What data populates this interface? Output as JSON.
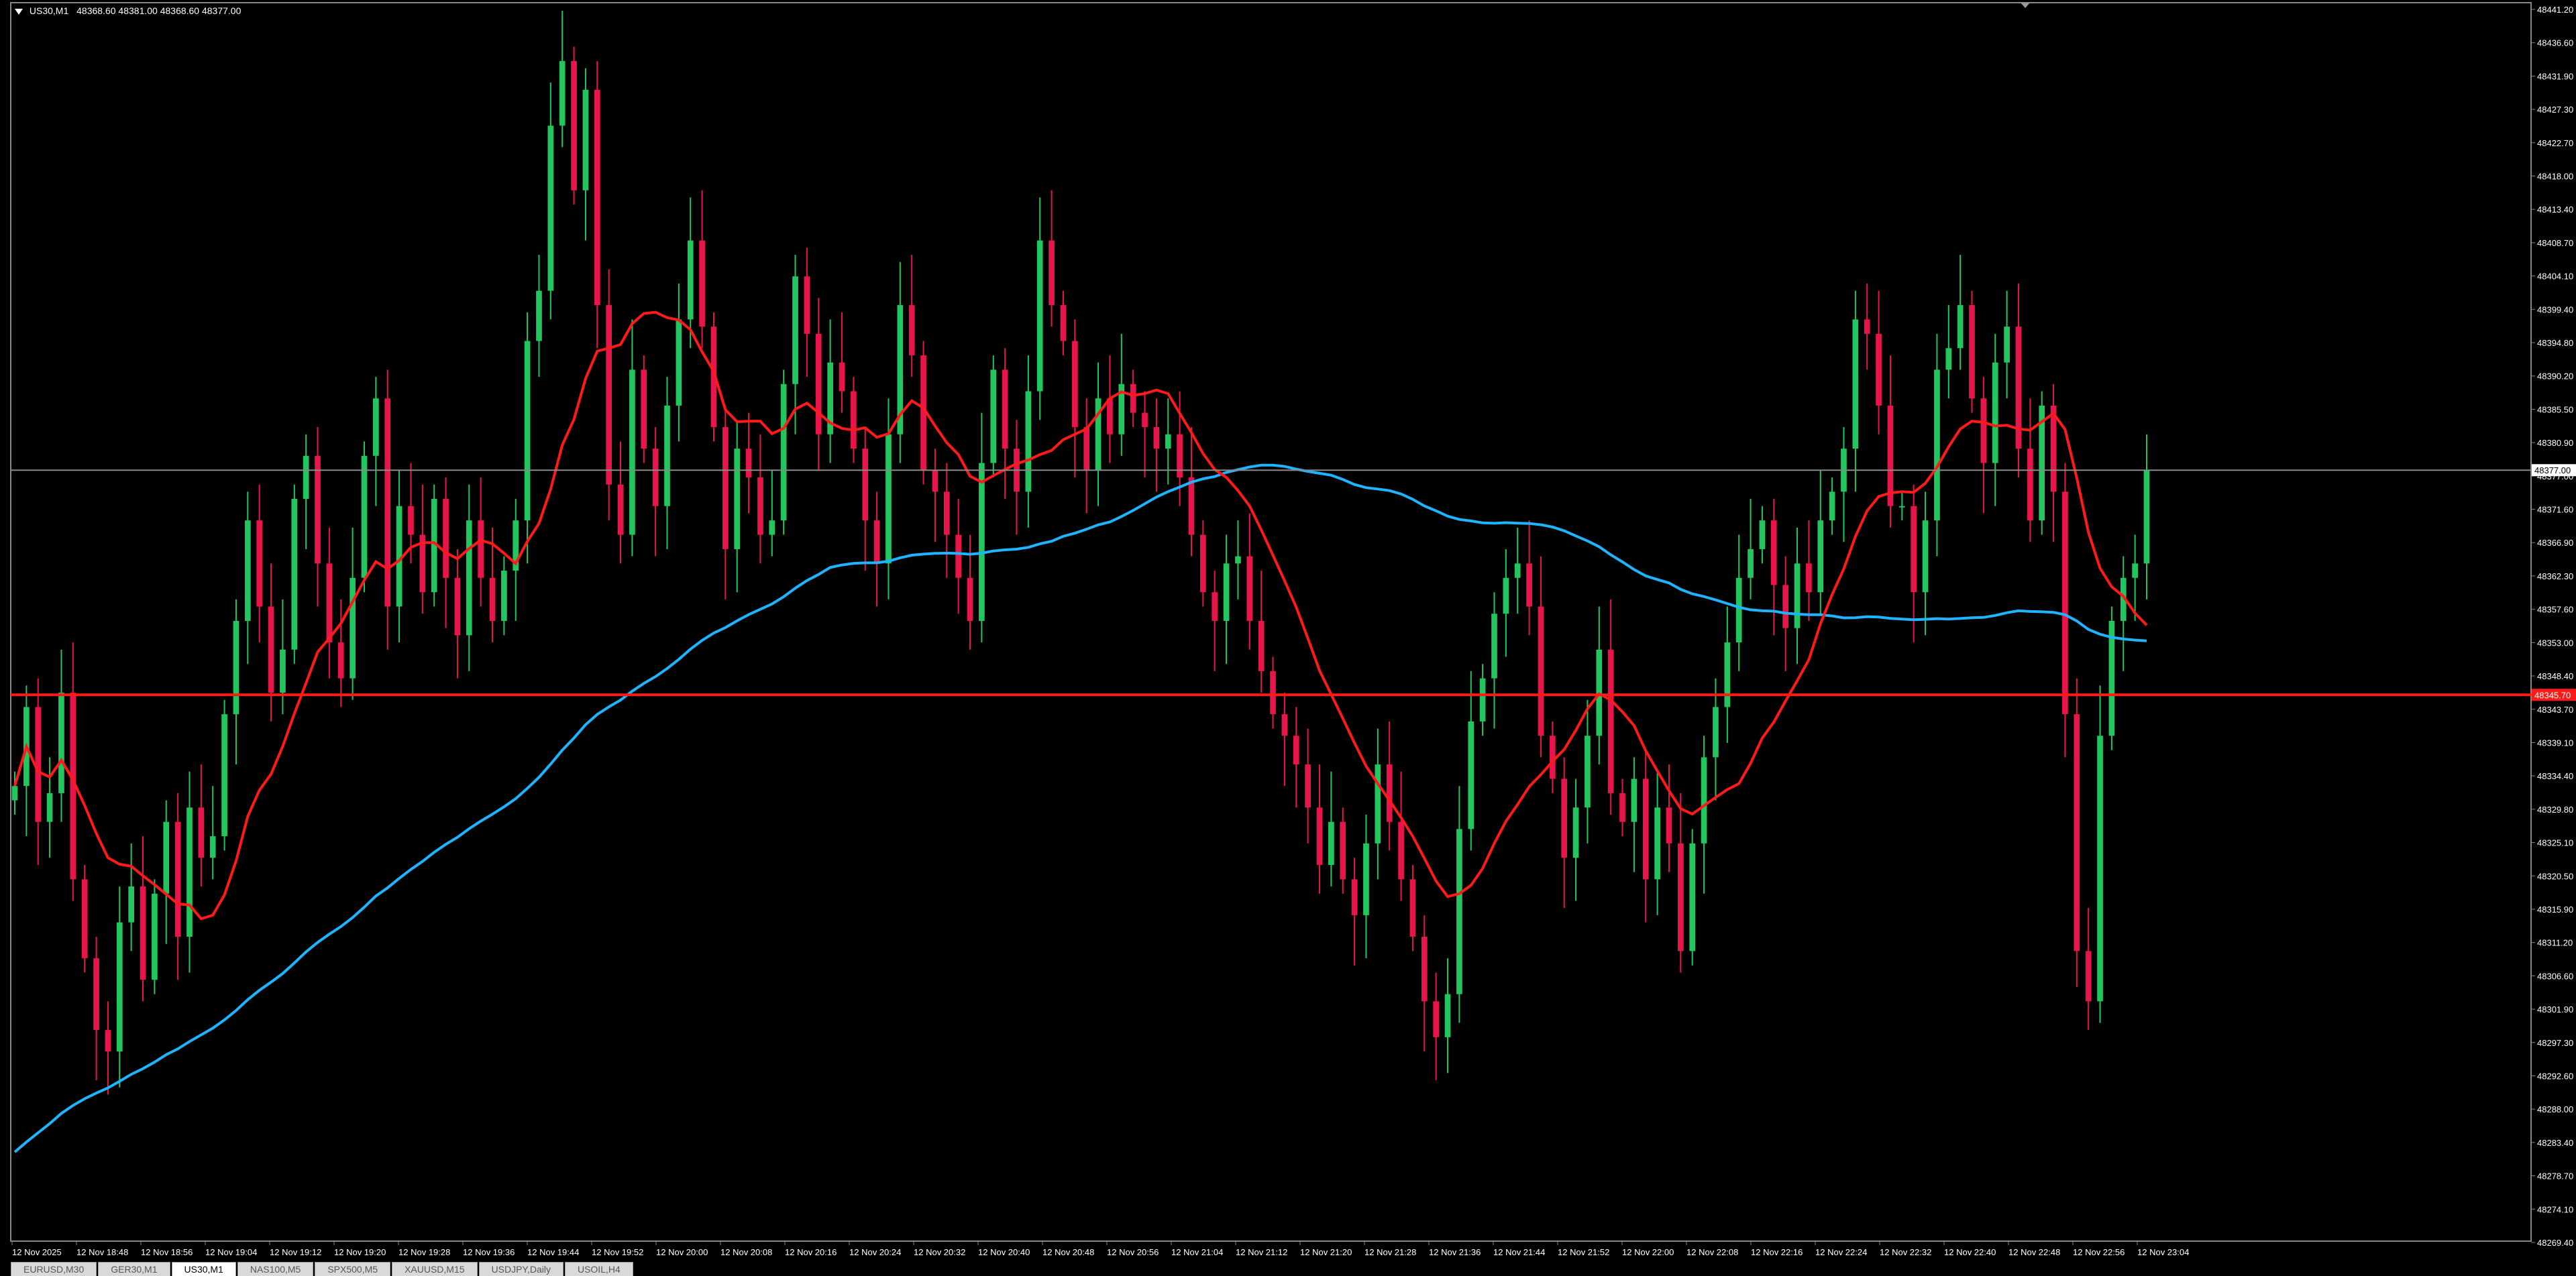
{
  "header": {
    "symbol": "US30,M1",
    "ohlc": "48368.60 48381.00 48368.60 48377.00"
  },
  "price_axis": {
    "labels": [
      "48441.20",
      "48436.60",
      "48431.90",
      "48427.30",
      "48422.70",
      "48418.00",
      "48413.40",
      "48408.70",
      "48404.10",
      "48399.40",
      "48394.80",
      "48390.20",
      "48385.50",
      "48380.90",
      "48377.00",
      "48371.60",
      "48366.90",
      "48362.30",
      "48357.60",
      "48353.00",
      "48348.40",
      "48343.70",
      "48339.10",
      "48334.40",
      "48329.80",
      "48325.10",
      "48320.50",
      "48315.90",
      "48311.20",
      "48306.60",
      "48301.90",
      "48297.30",
      "48292.60",
      "48288.00",
      "48283.40",
      "48278.70",
      "48274.10",
      "48269.40"
    ],
    "current_price_label": "48377.00",
    "level_label": "48345.70"
  },
  "time_axis": {
    "labels": [
      "12 Nov 2025",
      "12 Nov 18:48",
      "12 Nov 18:56",
      "12 Nov 19:04",
      "12 Nov 19:12",
      "12 Nov 19:20",
      "12 Nov 19:28",
      "12 Nov 19:36",
      "12 Nov 19:44",
      "12 Nov 19:52",
      "12 Nov 20:00",
      "12 Nov 20:08",
      "12 Nov 20:16",
      "12 Nov 20:24",
      "12 Nov 20:32",
      "12 Nov 20:40",
      "12 Nov 20:48",
      "12 Nov 20:56",
      "12 Nov 21:04",
      "12 Nov 21:12",
      "12 Nov 21:20",
      "12 Nov 21:28",
      "12 Nov 21:36",
      "12 Nov 21:44",
      "12 Nov 21:52",
      "12 Nov 22:00",
      "12 Nov 22:08",
      "12 Nov 22:16",
      "12 Nov 22:24",
      "12 Nov 22:32",
      "12 Nov 22:40",
      "12 Nov 22:48",
      "12 Nov 22:56",
      "12 Nov 23:04"
    ]
  },
  "tabs": [
    {
      "label": "EURUSD,M30",
      "active": false
    },
    {
      "label": "GER30,M1",
      "active": false
    },
    {
      "label": "US30,M1",
      "active": true
    },
    {
      "label": "NAS100,M5",
      "active": false
    },
    {
      "label": "SPX500,M5",
      "active": false
    },
    {
      "label": "XAUUSD,M15",
      "active": false
    },
    {
      "label": "USDJPY,Daily",
      "active": false
    },
    {
      "label": "USOIL,H4",
      "active": false
    }
  ],
  "colors": {
    "background": "#000000",
    "bull": "#22c55e",
    "bear": "#e8154b",
    "ma_fast": "#ff1a1a",
    "ma_slow": "#1eb4ff",
    "level_line": "#ff1a1a",
    "current_line": "#8a8a8a"
  },
  "chart_data": {
    "type": "candlestick",
    "symbol": "US30",
    "timeframe": "M1",
    "ylim": [
      48269.4,
      48441.2
    ],
    "current_price": 48377.0,
    "horizontal_level": 48345.7,
    "closes": [
      48333,
      48344,
      48328,
      48332,
      48346,
      48320,
      48309,
      48299,
      48296,
      48314,
      48319,
      48306,
      48318,
      48328,
      48312,
      48330,
      48323,
      48326,
      48343,
      48356,
      48370,
      48358,
      48346,
      48352,
      48373,
      48379,
      48364,
      48353,
      48348,
      48362,
      48379,
      48387,
      48358,
      48372,
      48368,
      48360,
      48373,
      48362,
      48354,
      48370,
      48362,
      48356,
      48363,
      48370,
      48395,
      48402,
      48425,
      48434,
      48416,
      48430,
      48400,
      48375,
      48368,
      48391,
      48380,
      48372,
      48386,
      48398,
      48409,
      48397,
      48383,
      48366,
      48380,
      48376,
      48368,
      48370,
      48389,
      48404,
      48396,
      48382,
      48392,
      48388,
      48380,
      48370,
      48364,
      48382,
      48400,
      48393,
      48377,
      48374,
      48368,
      48362,
      48356,
      48378,
      48391,
      48380,
      48374,
      48388,
      48409,
      48400,
      48395,
      48383,
      48377,
      48387,
      48382,
      48389,
      48385,
      48383,
      48380,
      48382,
      48376,
      48368,
      48360,
      48356,
      48364,
      48365,
      48356,
      48349,
      48343,
      48340,
      48336,
      48330,
      48322,
      48328,
      48320,
      48315,
      48325,
      48336,
      48328,
      48320,
      48312,
      48303,
      48298,
      48304,
      48327,
      48342,
      48348,
      48357,
      48362,
      48364,
      48358,
      48340,
      48334,
      48323,
      48330,
      48340,
      48352,
      48332,
      48328,
      48334,
      48320,
      48330,
      48325,
      48310,
      48325,
      48337,
      48344,
      48353,
      48362,
      48366,
      48370,
      48361,
      48355,
      48364,
      48360,
      48370,
      48374,
      48380,
      48398,
      48396,
      48386,
      48372,
      48372,
      48360,
      48370,
      48391,
      48394,
      48400,
      48387,
      48378,
      48392,
      48397,
      48380,
      48370,
      48386,
      48374,
      48343,
      48310,
      48303,
      48340,
      48356,
      48362,
      48364,
      48377
    ]
  }
}
